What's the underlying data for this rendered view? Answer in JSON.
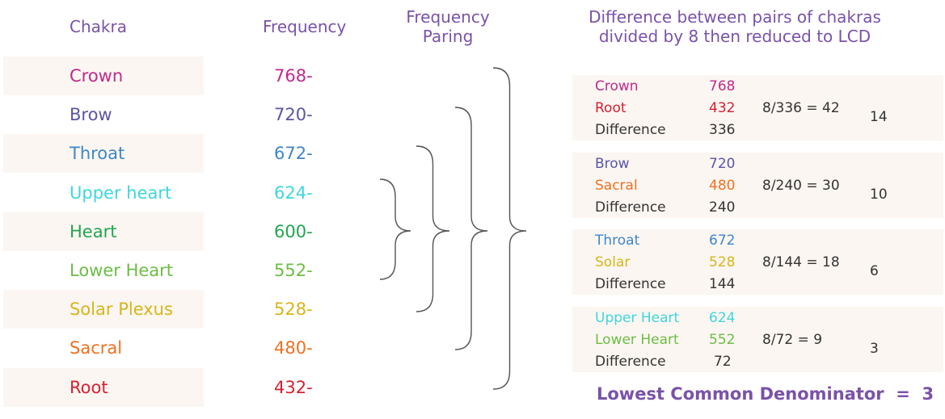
{
  "headers": {
    "chakra": "Chakra",
    "frequency": "Frequency",
    "pairing_line1": "Frequency",
    "pairing_line2": "Paring",
    "difference_line1": "Difference between pairs of chakras",
    "difference_line2": "divided by 8 then reduced to LCD"
  },
  "chakras": [
    {
      "name": "Crown",
      "freq": "768-",
      "color": "#c2298a"
    },
    {
      "name": "Brow",
      "freq": "720-",
      "color": "#5a56a6"
    },
    {
      "name": "Throat",
      "freq": "672-",
      "color": "#3f86c8"
    },
    {
      "name": "Upper heart",
      "freq": "624-",
      "color": "#3fd6de"
    },
    {
      "name": "Heart",
      "freq": "600-",
      "color": "#1fa64f"
    },
    {
      "name": "Lower Heart",
      "freq": "552-",
      "color": "#6cbd45"
    },
    {
      "name": "Solar Plexus",
      "freq": "528-",
      "color": "#d8b51b"
    },
    {
      "name": "Sacral",
      "freq": "480-",
      "color": "#f07021"
    },
    {
      "name": "Root",
      "freq": "432-",
      "color": "#d92030"
    }
  ],
  "pairs": [
    {
      "a_name": "Crown",
      "a_val": "768",
      "a_color": "#c2298a",
      "b_name": "Root",
      "b_val": "432",
      "b_color": "#d92030",
      "diff_label": "Difference",
      "diff_val": "336",
      "calc": "8/336 = 42",
      "reduced": "14"
    },
    {
      "a_name": "Brow",
      "a_val": "720",
      "a_color": "#5a56a6",
      "b_name": "Sacral",
      "b_val": "480",
      "b_color": "#f07021",
      "diff_label": "Difference",
      "diff_val": "240",
      "calc": "8/240 = 30",
      "reduced": "10"
    },
    {
      "a_name": "Throat",
      "a_val": "672",
      "a_color": "#3f86c8",
      "b_name": "Solar",
      "b_val": "528",
      "b_color": "#d8b51b",
      "diff_label": "Difference",
      "diff_val": "144",
      "calc": "8/144 = 18",
      "reduced": "6"
    },
    {
      "a_name": "Upper Heart",
      "a_val": "624",
      "a_color": "#3fd6de",
      "b_name": "Lower Heart",
      "b_val": "552",
      "b_color": "#6cbd45",
      "diff_label": "Difference",
      "diff_val": "72",
      "calc": "8/72 = 9",
      "reduced": "3"
    }
  ],
  "lcd": {
    "label": "Lowest Common Denominator",
    "equals": "=",
    "value": "3"
  },
  "colors": {
    "header": "#7a52a8",
    "row_shade": "#fbf6f1",
    "brace": "#555555"
  }
}
